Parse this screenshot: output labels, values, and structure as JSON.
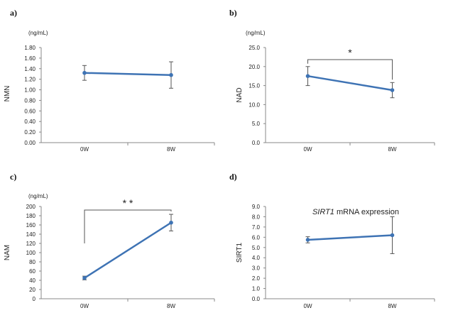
{
  "chart_data": [
    {
      "type": "line",
      "panel_label": "a)",
      "unit": "(ng/mL)",
      "ylabel": "NMN",
      "title": "",
      "categories": [
        "0W",
        "8W"
      ],
      "values": [
        1.32,
        1.28
      ],
      "errors": [
        0.14,
        0.25
      ],
      "ylim": [
        0,
        1.8
      ],
      "ystep": 0.2,
      "ydecimals": 2,
      "yticks": [
        "0.00",
        "0.20",
        "0.40",
        "0.60",
        "0.80",
        "1.00",
        "1.20",
        "1.40",
        "1.60",
        "1.80"
      ],
      "significance": "",
      "color": "#3e73b4"
    },
    {
      "type": "line",
      "panel_label": "b)",
      "unit": "(ng/mL)",
      "ylabel": "NAD",
      "title": "",
      "categories": [
        "0W",
        "8W"
      ],
      "values": [
        17.5,
        13.8
      ],
      "errors": [
        2.5,
        2.0
      ],
      "ylim": [
        0,
        25
      ],
      "ystep": 5,
      "ydecimals": 1,
      "yticks": [
        "0.0",
        "5.0",
        "10.0",
        "15.0",
        "20.0",
        "25.0"
      ],
      "significance": "*",
      "color": "#3e73b4"
    },
    {
      "type": "line",
      "panel_label": "c)",
      "unit": "(ng/mL)",
      "ylabel": "NAM",
      "title": "",
      "categories": [
        "0W",
        "8W"
      ],
      "values": [
        45,
        165
      ],
      "errors": [
        4,
        18
      ],
      "ylim": [
        0,
        200
      ],
      "ystep": 20,
      "ydecimals": 0,
      "yticks": [
        "0",
        "20",
        "40",
        "60",
        "80",
        "100",
        "120",
        "140",
        "160",
        "180",
        "200"
      ],
      "significance": "* *",
      "color": "#3e73b4"
    },
    {
      "type": "line",
      "panel_label": "d)",
      "unit": "",
      "ylabel": "SIRT1",
      "title_italic": "SIRT1",
      "title_rest": " mRNA expression",
      "categories": [
        "0W",
        "8W"
      ],
      "values": [
        5.75,
        6.2
      ],
      "errors": [
        0.3,
        1.8
      ],
      "ylim": [
        0,
        9
      ],
      "ystep": 1,
      "ydecimals": 1,
      "yticks": [
        "0.0",
        "1.0",
        "2.0",
        "3.0",
        "4.0",
        "5.0",
        "6.0",
        "7.0",
        "8.0",
        "9.0"
      ],
      "significance": "",
      "color": "#3e73b4"
    }
  ]
}
